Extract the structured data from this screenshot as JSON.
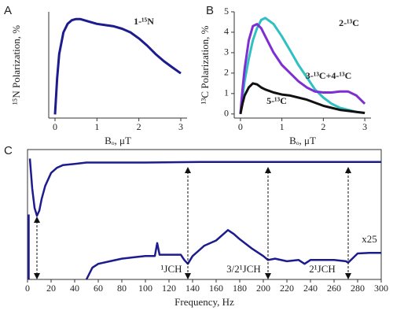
{
  "chart_data": [
    {
      "panel_label": "A",
      "type": "line",
      "xlabel": "Bₒ, μT",
      "ylabel": "¹⁵N Polarization, %",
      "xlim": [
        -0.15,
        3.15
      ],
      "ylim": [
        -0.3,
        8.5
      ],
      "xticks": [
        0,
        1,
        2,
        3
      ],
      "series": [
        {
          "name": "1-¹⁵N",
          "color": "#1c1c8f",
          "x": [
            0,
            0.05,
            0.1,
            0.2,
            0.3,
            0.4,
            0.5,
            0.6,
            0.8,
            1.0,
            1.2,
            1.4,
            1.6,
            1.8,
            2.0,
            2.2,
            2.4,
            2.6,
            2.8,
            3.0
          ],
          "values": [
            0,
            3,
            5,
            6.8,
            7.5,
            7.8,
            7.9,
            7.9,
            7.7,
            7.5,
            7.4,
            7.3,
            7.1,
            6.8,
            6.3,
            5.7,
            5.0,
            4.4,
            3.9,
            3.4
          ]
        }
      ]
    },
    {
      "panel_label": "B",
      "type": "line",
      "xlabel": "Bₒ, μT",
      "ylabel": "¹³C Polarization, %",
      "xlim": [
        -0.15,
        3.15
      ],
      "ylim": [
        -0.2,
        5
      ],
      "xticks": [
        0,
        1,
        2,
        3
      ],
      "yticks": [
        0,
        1,
        2,
        3,
        4,
        5
      ],
      "series": [
        {
          "name": "2-¹³C",
          "color": "#2ec0c2",
          "x": [
            0,
            0.05,
            0.1,
            0.2,
            0.3,
            0.4,
            0.5,
            0.6,
            0.8,
            1.0,
            1.2,
            1.4,
            1.6,
            1.8,
            2.0,
            2.2,
            2.4,
            2.6,
            2.8,
            3.0
          ],
          "values": [
            0,
            0.8,
            1.6,
            2.7,
            3.6,
            4.2,
            4.6,
            4.7,
            4.4,
            3.8,
            3.1,
            2.4,
            1.8,
            1.2,
            0.8,
            0.5,
            0.3,
            0.2,
            0.1,
            0.05
          ]
        },
        {
          "name": "3-¹³C+4-¹³C",
          "color": "#7d2fd4",
          "x": [
            0,
            0.05,
            0.1,
            0.2,
            0.3,
            0.4,
            0.5,
            0.6,
            0.8,
            1.0,
            1.2,
            1.4,
            1.6,
            1.8,
            2.0,
            2.2,
            2.4,
            2.6,
            2.8,
            3.0
          ],
          "values": [
            0,
            1.2,
            2.2,
            3.6,
            4.3,
            4.4,
            4.2,
            3.8,
            3.0,
            2.4,
            2.0,
            1.6,
            1.3,
            1.1,
            1.05,
            1.05,
            1.1,
            1.1,
            0.9,
            0.5
          ]
        },
        {
          "name": "5-¹³C",
          "color": "#111111",
          "x": [
            0,
            0.05,
            0.1,
            0.2,
            0.3,
            0.4,
            0.5,
            0.6,
            0.8,
            1.0,
            1.2,
            1.4,
            1.6,
            1.8,
            2.0,
            2.2,
            2.4,
            2.6,
            2.8,
            3.0
          ],
          "values": [
            0,
            0.5,
            0.9,
            1.3,
            1.5,
            1.45,
            1.3,
            1.2,
            1.05,
            0.95,
            0.9,
            0.8,
            0.7,
            0.55,
            0.4,
            0.3,
            0.2,
            0.15,
            0.1,
            0.05
          ]
        }
      ]
    },
    {
      "panel_label": "C",
      "type": "line",
      "xlabel": "Frequency, Hz",
      "xlim": [
        0,
        300
      ],
      "ylim": [
        0,
        10
      ],
      "xticks": [
        0,
        20,
        40,
        60,
        80,
        100,
        120,
        140,
        160,
        180,
        200,
        220,
        240,
        260,
        280,
        300
      ],
      "arrows_x": [
        8,
        136,
        204,
        272
      ],
      "annotations": [
        "¹JCH",
        "3/2¹JCH",
        "2¹JCH",
        "x25"
      ],
      "series": [
        {
          "color": "#1c1c8f",
          "x": [
            2,
            4,
            6,
            8,
            10,
            12,
            15,
            20,
            25,
            30,
            40,
            50,
            60,
            80,
            100,
            150,
            200,
            250,
            300
          ],
          "values": [
            9.3,
            7,
            5.5,
            4.9,
            5.3,
            6.2,
            7.2,
            8.2,
            8.6,
            8.8,
            8.9,
            9.0,
            9.0,
            9.0,
            9.0,
            9.05,
            9.05,
            9.05,
            9.05
          ]
        },
        {
          "color": "#1c1c8f",
          "x": [
            1,
            1,
            2,
            50,
            55,
            60,
            70,
            80,
            90,
            100,
            108,
            110,
            112,
            120,
            130,
            133,
            136,
            140,
            150,
            160,
            170,
            175,
            180,
            190,
            200,
            204,
            210,
            220,
            230,
            235,
            240,
            250,
            260,
            270,
            272,
            280,
            290,
            300
          ],
          "values": [
            0,
            5,
            null,
            0,
            0.9,
            1.2,
            1.4,
            1.6,
            1.7,
            1.8,
            1.8,
            2.8,
            1.9,
            1.9,
            1.9,
            1.5,
            1.2,
            1.8,
            2.6,
            3.0,
            3.8,
            3.5,
            3.1,
            2.4,
            1.8,
            1.5,
            1.6,
            1.4,
            1.5,
            1.2,
            1.5,
            1.5,
            1.5,
            1.4,
            1.3,
            2.0,
            2.05,
            2.05
          ]
        }
      ]
    }
  ]
}
